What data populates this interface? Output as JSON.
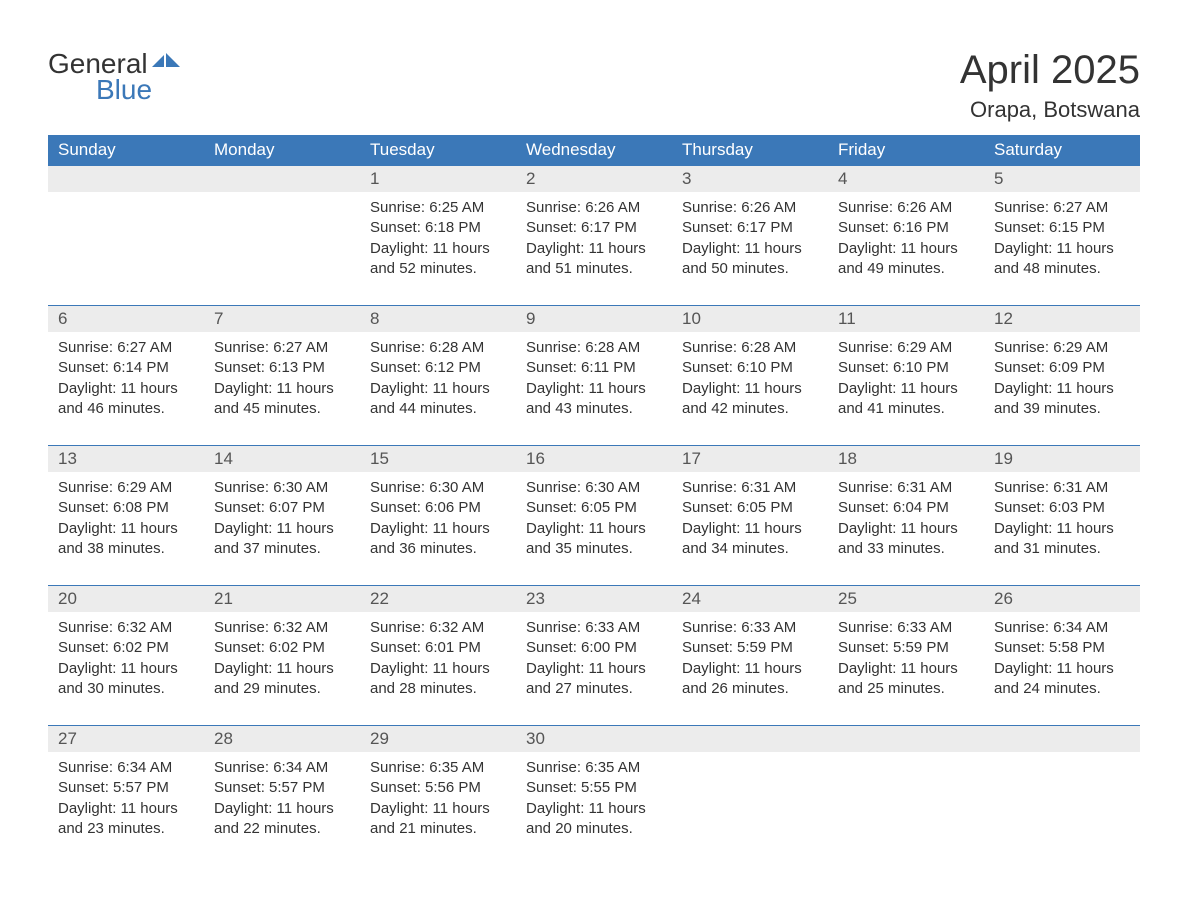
{
  "brand": {
    "word1": "General",
    "word2": "Blue"
  },
  "title": "April 2025",
  "location": "Orapa, Botswana",
  "colors": {
    "header_bg": "#3b78b8",
    "header_text": "#ffffff",
    "daynum_bg": "#ececec",
    "border": "#3b78b8",
    "body_text": "#333333",
    "logo_accent": "#3b78b8",
    "page_bg": "#ffffff"
  },
  "typography": {
    "title_fontsize": 40,
    "location_fontsize": 22,
    "dayhead_fontsize": 17,
    "daynum_fontsize": 17,
    "cell_fontsize": 15
  },
  "day_headers": [
    "Sunday",
    "Monday",
    "Tuesday",
    "Wednesday",
    "Thursday",
    "Friday",
    "Saturday"
  ],
  "weeks": [
    [
      null,
      null,
      {
        "n": "1",
        "sunrise": "Sunrise: 6:25 AM",
        "sunset": "Sunset: 6:18 PM",
        "day1": "Daylight: 11 hours",
        "day2": "and 52 minutes."
      },
      {
        "n": "2",
        "sunrise": "Sunrise: 6:26 AM",
        "sunset": "Sunset: 6:17 PM",
        "day1": "Daylight: 11 hours",
        "day2": "and 51 minutes."
      },
      {
        "n": "3",
        "sunrise": "Sunrise: 6:26 AM",
        "sunset": "Sunset: 6:17 PM",
        "day1": "Daylight: 11 hours",
        "day2": "and 50 minutes."
      },
      {
        "n": "4",
        "sunrise": "Sunrise: 6:26 AM",
        "sunset": "Sunset: 6:16 PM",
        "day1": "Daylight: 11 hours",
        "day2": "and 49 minutes."
      },
      {
        "n": "5",
        "sunrise": "Sunrise: 6:27 AM",
        "sunset": "Sunset: 6:15 PM",
        "day1": "Daylight: 11 hours",
        "day2": "and 48 minutes."
      }
    ],
    [
      {
        "n": "6",
        "sunrise": "Sunrise: 6:27 AM",
        "sunset": "Sunset: 6:14 PM",
        "day1": "Daylight: 11 hours",
        "day2": "and 46 minutes."
      },
      {
        "n": "7",
        "sunrise": "Sunrise: 6:27 AM",
        "sunset": "Sunset: 6:13 PM",
        "day1": "Daylight: 11 hours",
        "day2": "and 45 minutes."
      },
      {
        "n": "8",
        "sunrise": "Sunrise: 6:28 AM",
        "sunset": "Sunset: 6:12 PM",
        "day1": "Daylight: 11 hours",
        "day2": "and 44 minutes."
      },
      {
        "n": "9",
        "sunrise": "Sunrise: 6:28 AM",
        "sunset": "Sunset: 6:11 PM",
        "day1": "Daylight: 11 hours",
        "day2": "and 43 minutes."
      },
      {
        "n": "10",
        "sunrise": "Sunrise: 6:28 AM",
        "sunset": "Sunset: 6:10 PM",
        "day1": "Daylight: 11 hours",
        "day2": "and 42 minutes."
      },
      {
        "n": "11",
        "sunrise": "Sunrise: 6:29 AM",
        "sunset": "Sunset: 6:10 PM",
        "day1": "Daylight: 11 hours",
        "day2": "and 41 minutes."
      },
      {
        "n": "12",
        "sunrise": "Sunrise: 6:29 AM",
        "sunset": "Sunset: 6:09 PM",
        "day1": "Daylight: 11 hours",
        "day2": "and 39 minutes."
      }
    ],
    [
      {
        "n": "13",
        "sunrise": "Sunrise: 6:29 AM",
        "sunset": "Sunset: 6:08 PM",
        "day1": "Daylight: 11 hours",
        "day2": "and 38 minutes."
      },
      {
        "n": "14",
        "sunrise": "Sunrise: 6:30 AM",
        "sunset": "Sunset: 6:07 PM",
        "day1": "Daylight: 11 hours",
        "day2": "and 37 minutes."
      },
      {
        "n": "15",
        "sunrise": "Sunrise: 6:30 AM",
        "sunset": "Sunset: 6:06 PM",
        "day1": "Daylight: 11 hours",
        "day2": "and 36 minutes."
      },
      {
        "n": "16",
        "sunrise": "Sunrise: 6:30 AM",
        "sunset": "Sunset: 6:05 PM",
        "day1": "Daylight: 11 hours",
        "day2": "and 35 minutes."
      },
      {
        "n": "17",
        "sunrise": "Sunrise: 6:31 AM",
        "sunset": "Sunset: 6:05 PM",
        "day1": "Daylight: 11 hours",
        "day2": "and 34 minutes."
      },
      {
        "n": "18",
        "sunrise": "Sunrise: 6:31 AM",
        "sunset": "Sunset: 6:04 PM",
        "day1": "Daylight: 11 hours",
        "day2": "and 33 minutes."
      },
      {
        "n": "19",
        "sunrise": "Sunrise: 6:31 AM",
        "sunset": "Sunset: 6:03 PM",
        "day1": "Daylight: 11 hours",
        "day2": "and 31 minutes."
      }
    ],
    [
      {
        "n": "20",
        "sunrise": "Sunrise: 6:32 AM",
        "sunset": "Sunset: 6:02 PM",
        "day1": "Daylight: 11 hours",
        "day2": "and 30 minutes."
      },
      {
        "n": "21",
        "sunrise": "Sunrise: 6:32 AM",
        "sunset": "Sunset: 6:02 PM",
        "day1": "Daylight: 11 hours",
        "day2": "and 29 minutes."
      },
      {
        "n": "22",
        "sunrise": "Sunrise: 6:32 AM",
        "sunset": "Sunset: 6:01 PM",
        "day1": "Daylight: 11 hours",
        "day2": "and 28 minutes."
      },
      {
        "n": "23",
        "sunrise": "Sunrise: 6:33 AM",
        "sunset": "Sunset: 6:00 PM",
        "day1": "Daylight: 11 hours",
        "day2": "and 27 minutes."
      },
      {
        "n": "24",
        "sunrise": "Sunrise: 6:33 AM",
        "sunset": "Sunset: 5:59 PM",
        "day1": "Daylight: 11 hours",
        "day2": "and 26 minutes."
      },
      {
        "n": "25",
        "sunrise": "Sunrise: 6:33 AM",
        "sunset": "Sunset: 5:59 PM",
        "day1": "Daylight: 11 hours",
        "day2": "and 25 minutes."
      },
      {
        "n": "26",
        "sunrise": "Sunrise: 6:34 AM",
        "sunset": "Sunset: 5:58 PM",
        "day1": "Daylight: 11 hours",
        "day2": "and 24 minutes."
      }
    ],
    [
      {
        "n": "27",
        "sunrise": "Sunrise: 6:34 AM",
        "sunset": "Sunset: 5:57 PM",
        "day1": "Daylight: 11 hours",
        "day2": "and 23 minutes."
      },
      {
        "n": "28",
        "sunrise": "Sunrise: 6:34 AM",
        "sunset": "Sunset: 5:57 PM",
        "day1": "Daylight: 11 hours",
        "day2": "and 22 minutes."
      },
      {
        "n": "29",
        "sunrise": "Sunrise: 6:35 AM",
        "sunset": "Sunset: 5:56 PM",
        "day1": "Daylight: 11 hours",
        "day2": "and 21 minutes."
      },
      {
        "n": "30",
        "sunrise": "Sunrise: 6:35 AM",
        "sunset": "Sunset: 5:55 PM",
        "day1": "Daylight: 11 hours",
        "day2": "and 20 minutes."
      },
      null,
      null,
      null
    ]
  ]
}
